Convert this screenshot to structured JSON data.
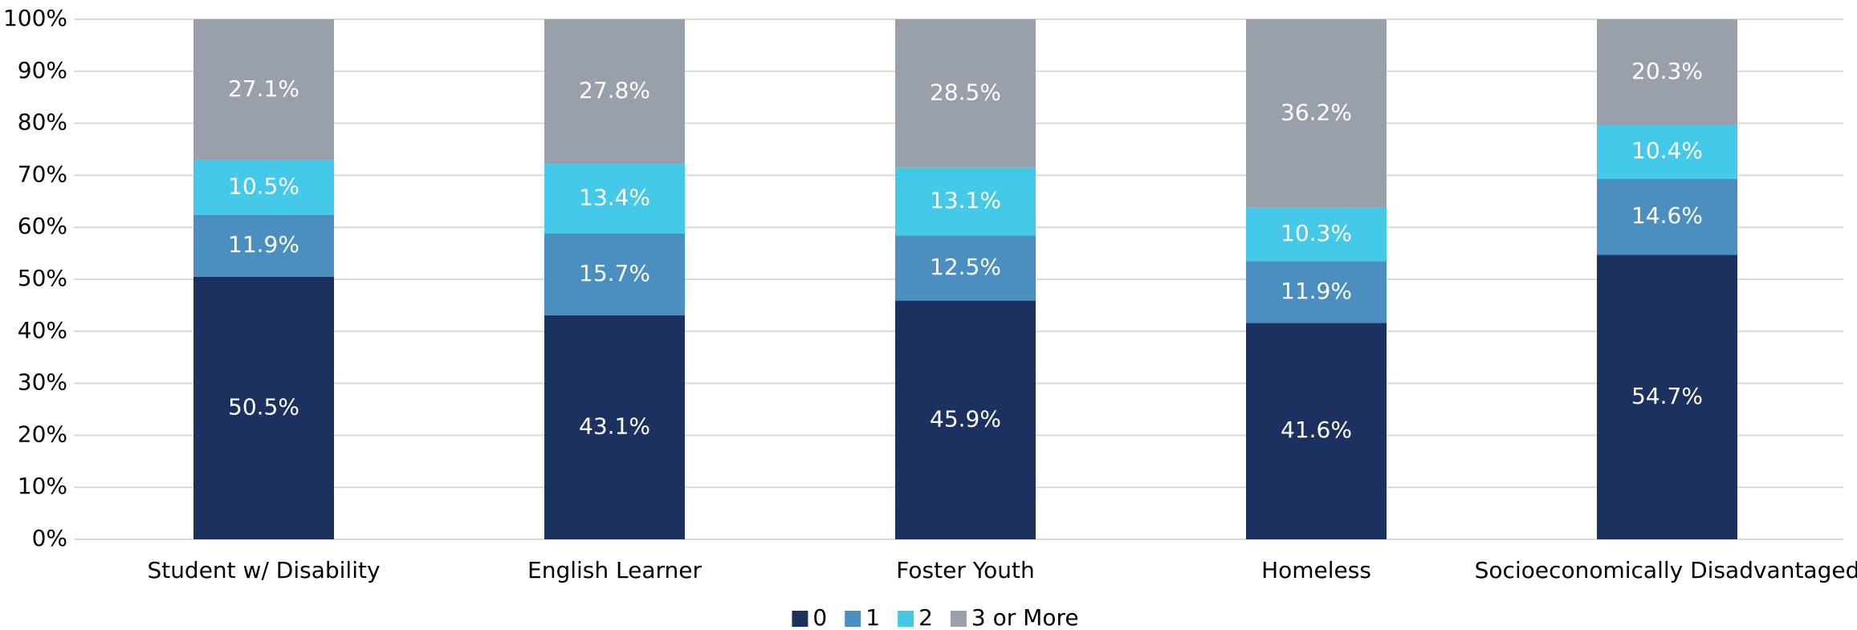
{
  "chart_data": {
    "type": "stacked_bar",
    "categories": [
      "Student w/ Disability",
      "English Learner",
      "Foster Youth",
      "Homeless",
      "Socioeconomically Disadvantaged"
    ],
    "series": [
      {
        "name": "0",
        "color": "#1b3160",
        "values": [
          50.5,
          43.1,
          45.9,
          41.6,
          54.7
        ],
        "value_labels": [
          "50.5%",
          "43.1%",
          "45.9%",
          "41.6%",
          "54.7%"
        ]
      },
      {
        "name": "1",
        "color": "#4a8fbf",
        "values": [
          11.9,
          15.7,
          12.5,
          11.9,
          14.6
        ],
        "value_labels": [
          "11.9%",
          "15.7%",
          "12.5%",
          "11.9%",
          "14.6%"
        ]
      },
      {
        "name": "2",
        "color": "#45c9e8",
        "values": [
          10.5,
          13.4,
          13.1,
          10.3,
          10.4
        ],
        "value_labels": [
          "10.5%",
          "13.4%",
          "13.1%",
          "10.3%",
          "10.4%"
        ]
      },
      {
        "name": "3 or More",
        "color": "#99a0aa",
        "values": [
          27.1,
          27.8,
          28.5,
          36.2,
          20.3
        ],
        "value_labels": [
          "27.1%",
          "27.8%",
          "28.5%",
          "36.2%",
          "20.3%"
        ]
      }
    ],
    "ylim": [
      0,
      100
    ],
    "yticks": [
      {
        "value": 0,
        "label": "0%"
      },
      {
        "value": 10,
        "label": "10%"
      },
      {
        "value": 20,
        "label": "20%"
      },
      {
        "value": 30,
        "label": "30%"
      },
      {
        "value": 40,
        "label": "40%"
      },
      {
        "value": 50,
        "label": "50%"
      },
      {
        "value": 60,
        "label": "60%"
      },
      {
        "value": 70,
        "label": "70%"
      },
      {
        "value": 80,
        "label": "80%"
      },
      {
        "value": 90,
        "label": "90%"
      },
      {
        "value": 100,
        "label": "100%"
      }
    ],
    "grid": true,
    "legend": "bottom"
  }
}
